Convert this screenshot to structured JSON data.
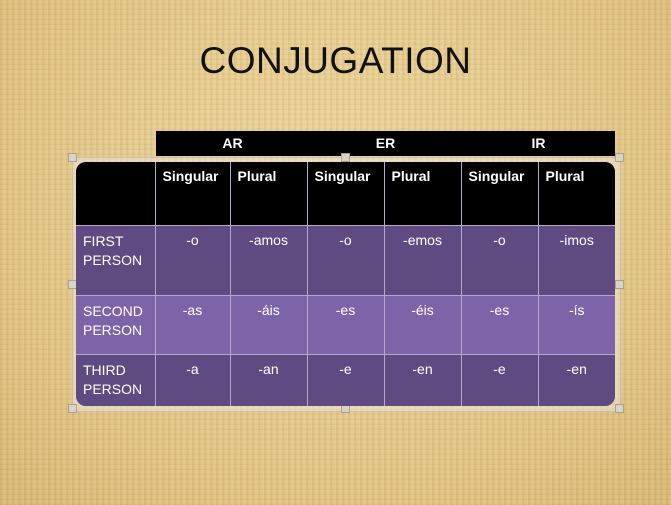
{
  "slide": {
    "title": "CONJUGATION",
    "verb_groups": [
      "AR",
      "ER",
      "IR"
    ],
    "columns": [
      "Singular",
      "Plural",
      "Singular",
      "Plural",
      "Singular",
      "Plural"
    ],
    "rows": [
      {
        "label": "FIRST PERSON",
        "cells": [
          "-o",
          "-amos",
          "-o",
          "-emos",
          "-o",
          "-imos"
        ]
      },
      {
        "label": "SECOND PERSON",
        "cells": [
          "-as",
          "-áis",
          "-es",
          "-éis",
          "-es",
          "-ís"
        ]
      },
      {
        "label": "THIRD PERSON",
        "cells": [
          "-a",
          "-an",
          "-e",
          "-en",
          "-e",
          "-en"
        ]
      }
    ],
    "colors": {
      "header": "#000000",
      "row_dark": "#5f4b82",
      "row_light": "#7d64a8"
    }
  }
}
